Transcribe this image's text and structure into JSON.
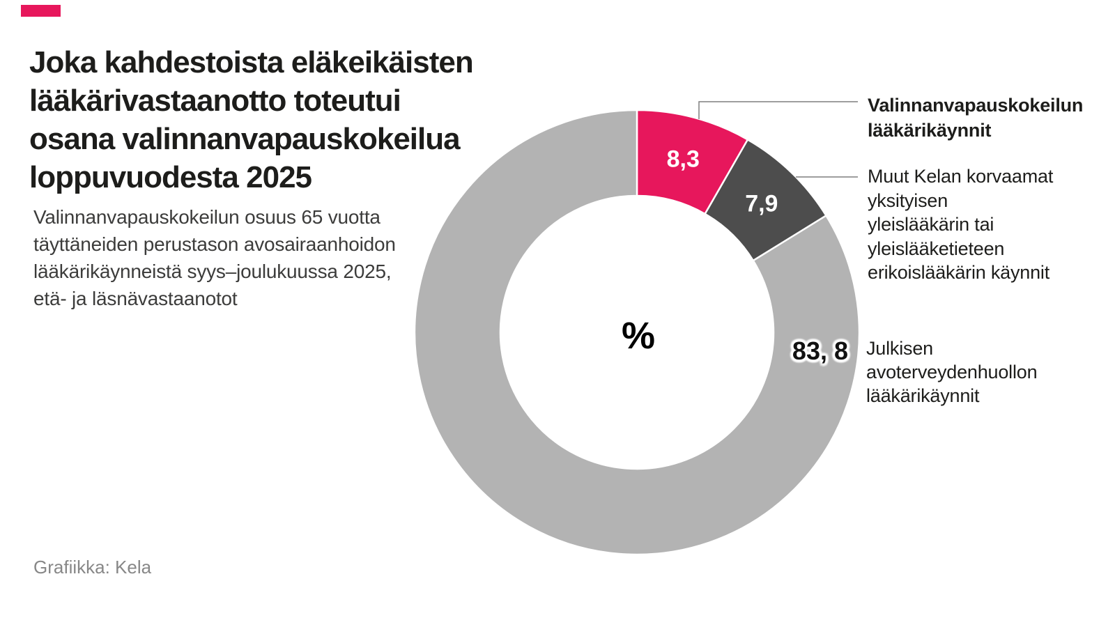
{
  "page": {
    "background": "#ffffff"
  },
  "brand": {
    "accent_color": "#E7175C"
  },
  "header": {
    "title_lines": [
      "Joka kahdestoista eläkeikäisten",
      "lääkärivastaanotto toteutui",
      "osana valinnanvapauskokeilua",
      "loppuvuodesta 2025"
    ],
    "subtitle_lines": [
      "Valinnanvapauskokeilun osuus 65 vuotta",
      "täyttäneiden perustason avosairaanhoidon",
      "lääkärikäynneistä syys–joulukuussa 2025,",
      "etä- ja läsnävastaanotot"
    ]
  },
  "chart_data": {
    "type": "pie",
    "donut": true,
    "title": "Joka kahdestoista eläkeikäisten lääkärivastaanotto toteutui osana valinnanvapauskokeilua loppuvuodesta 2025",
    "unit": "%",
    "center_label": "%",
    "start_angle_deg": 0,
    "direction": "clockwise",
    "legend_position": "right",
    "slices": [
      {
        "label": "Valinnanvapauskokeilun lääkärikäynnit",
        "value": 8.3,
        "value_label": "8,3",
        "color": "#E7175C",
        "label_inside": true
      },
      {
        "label": "Muut Kelan korvaamat yksityisen yleislääkärin tai yleislääketieteen erikoislääkärin käynnit",
        "value": 7.9,
        "value_label": "7,9",
        "color": "#4D4D4D",
        "label_inside": true
      },
      {
        "label": "Julkisen avoterveydenhuollon lääkärikäynnit",
        "value": 83.8,
        "value_label": "83, 8",
        "color": "#B3B3B3",
        "label_inside": false
      }
    ]
  },
  "annotations": {
    "slice1_label_lines": [
      "Valinnanvapauskokeilun",
      "lääkärikäynnit"
    ],
    "slice2_label_lines": [
      "Muut Kelan korvaamat yksityisen",
      "yleislääkärin tai yleislääketieteen",
      "erikoislääkärin käynnit"
    ],
    "slice3_label_lines": [
      "Julkisen avoterveydenhuollon",
      "lääkärikäynnit"
    ]
  },
  "footer": {
    "credit": "Grafiikka: Kela"
  }
}
